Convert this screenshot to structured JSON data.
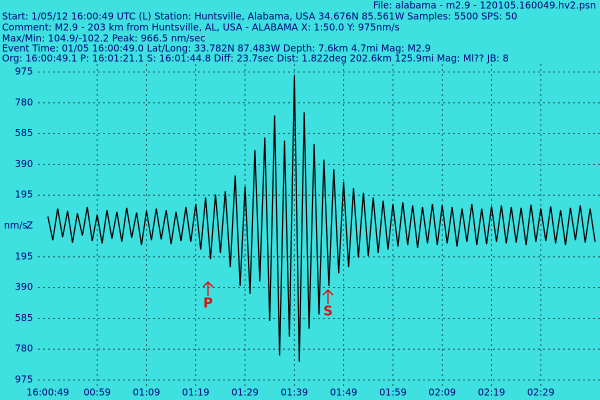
{
  "chart_data": {
    "type": "line",
    "header": [
      "Start: 1/05/12 16:00:49 UTC (L) Station: Huntsville, Alabama, USA 34.676N 85.561W Samples: 5500  SPS: 50",
      "Comment: M2.9 - 203 km from Huntsville, AL, USA - ALABAMA  X: 1:50.0 Y: 975nm/s",
      "Max/Min: 104.9/-102.2  Peak: 966.5 nm/sec",
      "Event Time: 01/05 16:00:49.0 Lat/Long: 33.782N 87.483W Depth: 7.6km 4.7mi Mag: M2.9",
      "Org: 16:00:49.1 P: 16:01:21.1 S: 16:01:44.8 Diff: 23.7sec Dist: 1.822deg 202.6km 125.9mi  Mag: Ml?? JB: 8"
    ],
    "file": "File: alabama - m2.9 - 120105.160049.hv2.psn",
    "ylabel": "nm/s",
    "channel": "Z",
    "annotations": [
      "P",
      "S"
    ],
    "grid": true,
    "series": [
      {
        "color": "#000000",
        "x": [
          0,
          1,
          2,
          3,
          4,
          5,
          6,
          7,
          8,
          9,
          10,
          11,
          12,
          13,
          14,
          15,
          16,
          17,
          18,
          19,
          20,
          21,
          22,
          23,
          24,
          25,
          26,
          27,
          28,
          29,
          30,
          31,
          32,
          33,
          34,
          35,
          36,
          37,
          38,
          39,
          40,
          41,
          42,
          43,
          44,
          45,
          46,
          47,
          48,
          49,
          50,
          51,
          52,
          53,
          54,
          55,
          56,
          57,
          58,
          59,
          60,
          61,
          62,
          63,
          64,
          65,
          66,
          67,
          68,
          69,
          70,
          71,
          72,
          73,
          74,
          75,
          76,
          77,
          78,
          79,
          80,
          81,
          82,
          83,
          84,
          85,
          86,
          87,
          88,
          89,
          90,
          91,
          92,
          93,
          94,
          95,
          96,
          97,
          98,
          99,
          100,
          101,
          102,
          103,
          104,
          105,
          106,
          107,
          108,
          109,
          110,
          111
        ],
        "values": [
          60,
          -90,
          110,
          -70,
          95,
          -105,
          80,
          -60,
          120,
          -95,
          70,
          -110,
          100,
          -80,
          90,
          -100,
          115,
          -75,
          85,
          -120,
          95,
          -90,
          110,
          -85,
          100,
          -115,
          90,
          -95,
          120,
          -100,
          140,
          -150,
          180,
          -210,
          200,
          -170,
          220,
          -260,
          320,
          -380,
          250,
          -430,
          480,
          -350,
          560,
          -600,
          700,
          -820,
          540,
          -700,
          950,
          -860,
          720,
          -650,
          520,
          -560,
          420,
          -380,
          360,
          -300,
          280,
          -260,
          240,
          -200,
          210,
          -190,
          180,
          -170,
          160,
          -150,
          140,
          -130,
          150,
          -120,
          130,
          -140,
          120,
          -110,
          140,
          -120,
          130,
          -110,
          120,
          -130,
          110,
          -100,
          140,
          -120,
          110,
          -115,
          125,
          -100,
          130,
          -110,
          120,
          -105,
          115,
          -120,
          135,
          -100,
          110,
          -95,
          125,
          -110,
          100,
          -120,
          115,
          -90,
          130,
          -105,
          110,
          -100
        ]
      }
    ],
    "xlim": [
      -2,
      112
    ],
    "xticks": [
      {
        "value": 0,
        "label": "16:00:49"
      },
      {
        "value": 10,
        "label": "00:59"
      },
      {
        "value": 20,
        "label": "01:09"
      },
      {
        "value": 30,
        "label": "01:19"
      },
      {
        "value": 40,
        "label": "01:29"
      },
      {
        "value": 50,
        "label": "01:39"
      },
      {
        "value": 60,
        "label": "01:49"
      },
      {
        "value": 70,
        "label": "01:59"
      },
      {
        "value": 80,
        "label": "02:09"
      },
      {
        "value": 90,
        "label": "02:19"
      },
      {
        "value": 100,
        "label": "02:29"
      }
    ],
    "ylim": [
      -975,
      975
    ],
    "yticks": [
      975,
      780,
      585,
      390,
      195,
      {
        "value": -195,
        "label": "195"
      },
      {
        "value": -390,
        "label": "390"
      },
      {
        "value": -585,
        "label": "585"
      },
      {
        "value": -780,
        "label": "780"
      },
      {
        "value": -975,
        "label": "975"
      }
    ]
  }
}
